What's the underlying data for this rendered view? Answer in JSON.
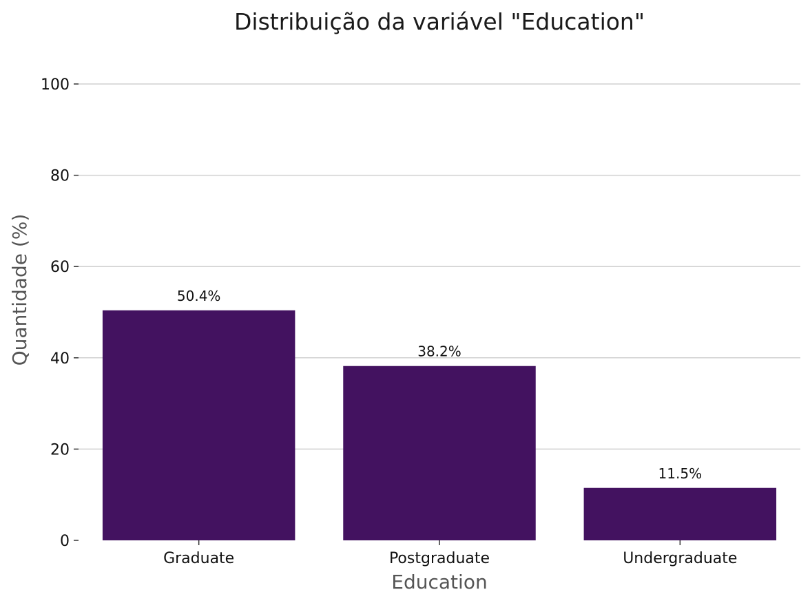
{
  "chart_data": {
    "type": "bar",
    "title": "Distribuição da variável \"Education\"",
    "xlabel": "Education",
    "ylabel": "Quantidade (%)",
    "categories": [
      "Graduate",
      "Postgraduate",
      "Undergraduate"
    ],
    "values": [
      50.4,
      38.2,
      11.5
    ],
    "value_labels": [
      "50.4%",
      "38.2%",
      "11.5%"
    ],
    "ylim": [
      0,
      100
    ],
    "yticks": [
      0,
      20,
      40,
      60,
      80,
      100
    ],
    "grid": "horizontal",
    "bar_color": "#431260",
    "legend": "none"
  }
}
